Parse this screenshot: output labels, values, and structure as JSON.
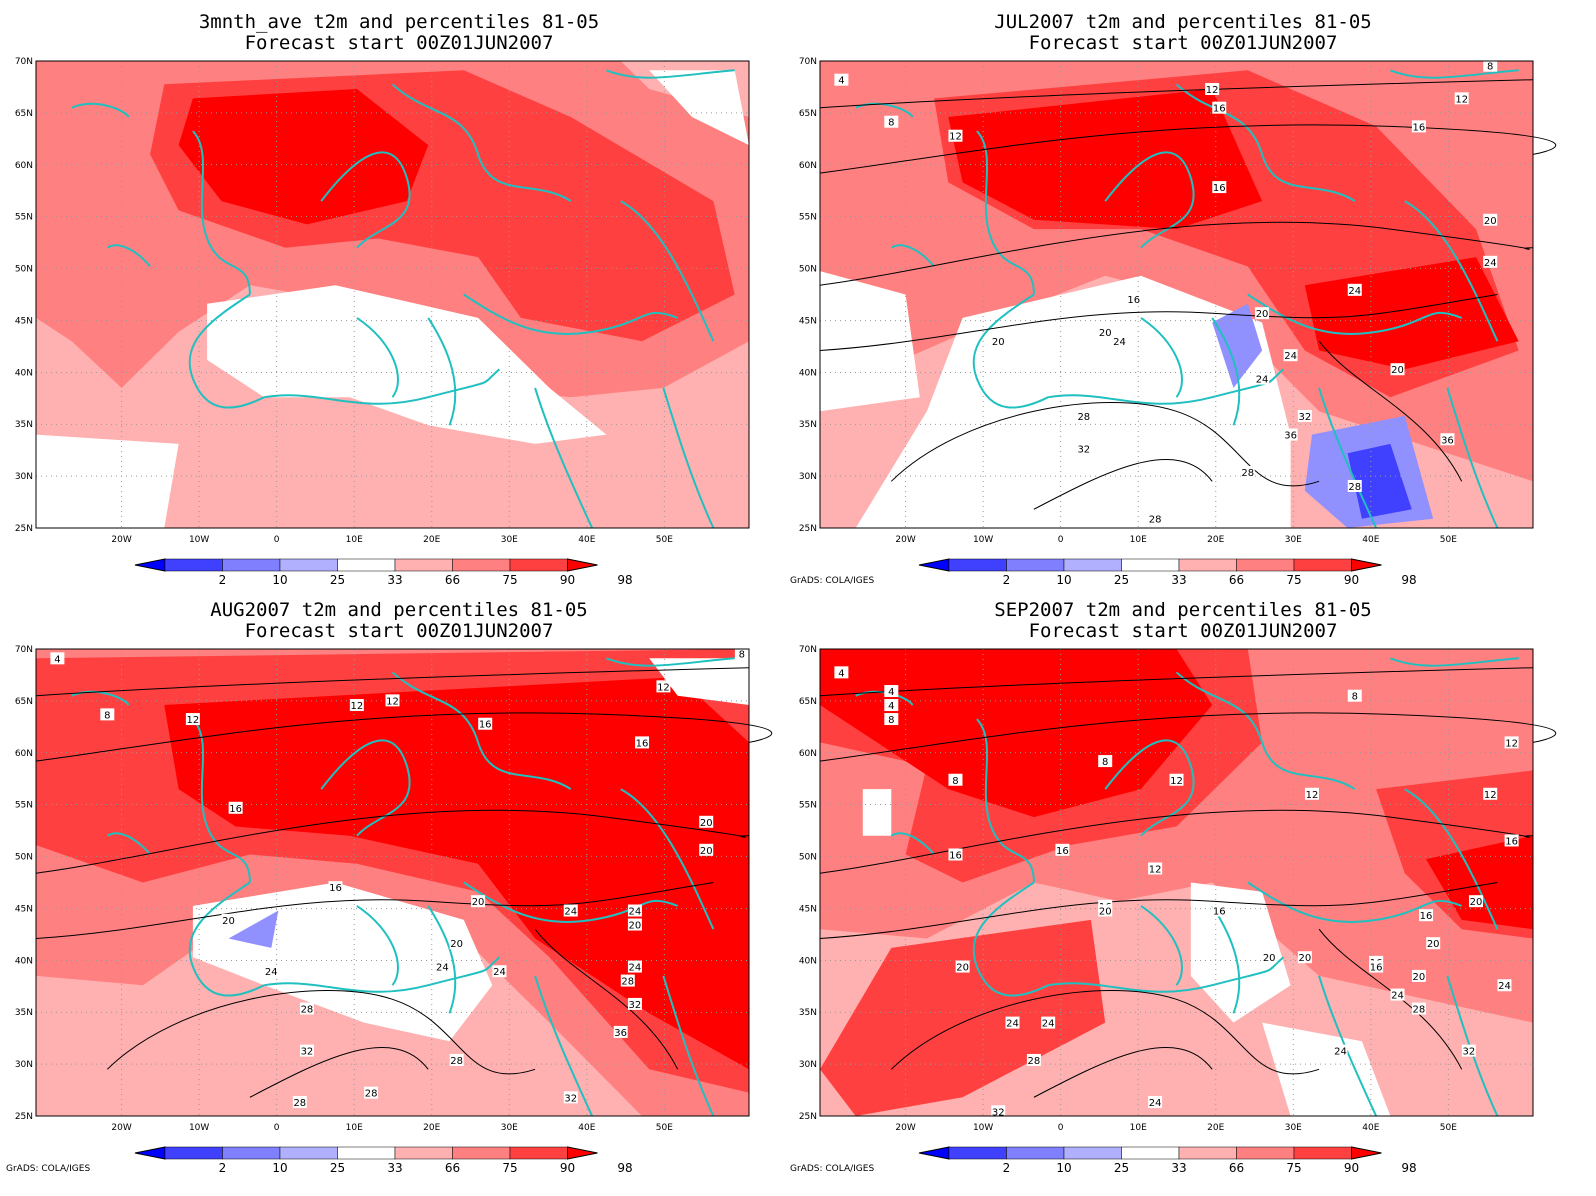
{
  "panels": [
    {
      "id": "3mnth",
      "title_line1": "3mnth_ave t2m and percentiles 81-05",
      "title_line2": "Forecast start 00Z01JUN2007",
      "has_contours": false,
      "footer": "",
      "contour_labels": []
    },
    {
      "id": "jul",
      "title_line1": "JUL2007 t2m and percentiles 81-05",
      "title_line2": "Forecast start 00Z01JUN2007",
      "has_contours": true,
      "footer": "GrADS: COLA/IGES",
      "contour_labels": [
        "4",
        "8",
        "8",
        "12",
        "12",
        "12",
        "16",
        "16",
        "16",
        "16",
        "20",
        "20",
        "20",
        "20",
        "24",
        "24",
        "24",
        "24",
        "24",
        "20",
        "28",
        "28",
        "28",
        "28",
        "32",
        "32",
        "36",
        "36"
      ]
    },
    {
      "id": "aug",
      "title_line1": "AUG2007 t2m and percentiles 81-05",
      "title_line2": "Forecast start 00Z01JUN2007",
      "has_contours": true,
      "footer": "GrADS: COLA/IGES",
      "contour_labels": [
        "4",
        "8",
        "8",
        "12",
        "12",
        "12",
        "12",
        "16",
        "16",
        "16",
        "16",
        "20",
        "20",
        "20",
        "20",
        "24",
        "24",
        "24",
        "24",
        "24",
        "28",
        "28",
        "28",
        "28",
        "28",
        "32",
        "32",
        "32",
        "36",
        "20",
        "20",
        "24"
      ]
    },
    {
      "id": "sep",
      "title_line1": "SEP2007 t2m and percentiles 81-05",
      "title_line2": "Forecast start 00Z01JUN2007",
      "has_contours": true,
      "footer": "GrADS: COLA/IGES",
      "contour_labels": [
        "4",
        "4",
        "4",
        "8",
        "8",
        "8",
        "8",
        "12",
        "12",
        "12",
        "12",
        "12",
        "16",
        "16",
        "16",
        "16",
        "16",
        "16",
        "16",
        "20",
        "20",
        "20",
        "20",
        "20",
        "20",
        "20",
        "24",
        "24",
        "24",
        "24",
        "24",
        "24",
        "28",
        "28",
        "32",
        "32",
        "16"
      ]
    }
  ],
  "axes": {
    "lat_labels": [
      "70N",
      "65N",
      "60N",
      "55N",
      "50N",
      "45N",
      "40N",
      "35N",
      "30N",
      "25N"
    ],
    "lon_labels": [
      "20W",
      "10W",
      "0",
      "10E",
      "20E",
      "30E",
      "40E",
      "50E"
    ]
  },
  "colorbar": {
    "labels": [
      "2",
      "10",
      "25",
      "33",
      "66",
      "75",
      "90",
      "98"
    ],
    "colors": [
      "#0000ff",
      "#4040ff",
      "#8080ff",
      "#b0b0ff",
      "#ffffff",
      "#ffb0b0",
      "#ff8080",
      "#ff4040",
      "#ff0000"
    ]
  },
  "colors": {
    "coast": "#20c0c0",
    "shade_light": "#ffb0b0",
    "shade_mid": "#ff8080",
    "shade_dark": "#ff4040",
    "shade_max": "#ff0000",
    "blue_light": "#9090ff",
    "blue_dark": "#4040ff"
  }
}
